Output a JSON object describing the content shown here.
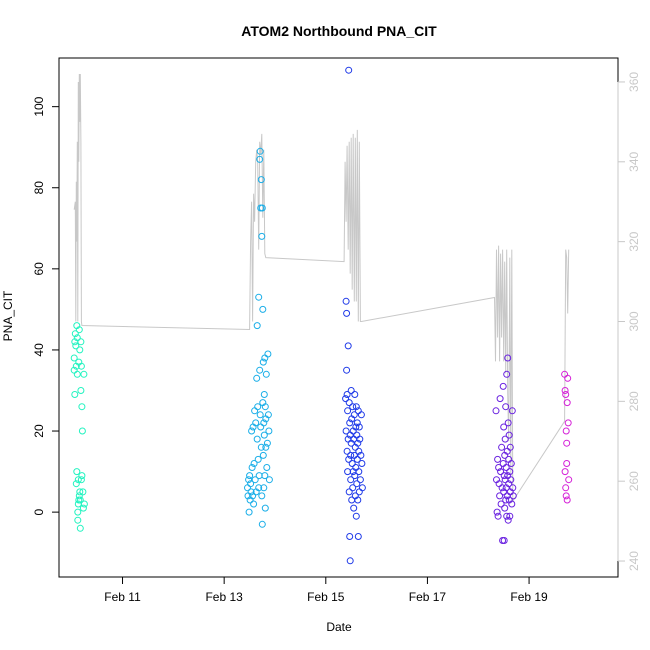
{
  "chart_data": {
    "type": "scatter",
    "title": "ATOM2 Northbound PNA_CIT",
    "xlabel": "Date",
    "ylabel": "PNA_CIT",
    "x_ticks": [
      "Feb 11",
      "Feb 13",
      "Feb 15",
      "Feb 17",
      "Feb 19"
    ],
    "y_ticks": [
      "0",
      "20",
      "40",
      "60",
      "80",
      "100"
    ],
    "y2_ticks": [
      "240",
      "260",
      "280",
      "300",
      "320",
      "340",
      "360"
    ],
    "xlim": [
      "2022-02-09T18:00",
      "2022-02-20T18:00"
    ],
    "ylim": [
      -16,
      112
    ],
    "y2lim": [
      236,
      366
    ],
    "point_series": [
      {
        "color": "#22f3c0",
        "points": [
          [
            10.05,
            35
          ],
          [
            10.05,
            38
          ],
          [
            10.06,
            42
          ],
          [
            10.06,
            29
          ],
          [
            10.07,
            44
          ],
          [
            10.08,
            41
          ],
          [
            10.09,
            36
          ],
          [
            10.09,
            7
          ],
          [
            10.1,
            46
          ],
          [
            10.1,
            10
          ],
          [
            10.11,
            43
          ],
          [
            10.11,
            34
          ],
          [
            10.12,
            0
          ],
          [
            10.12,
            -2
          ],
          [
            10.13,
            8
          ],
          [
            10.13,
            2
          ],
          [
            10.14,
            3
          ],
          [
            10.14,
            37
          ],
          [
            10.15,
            45
          ],
          [
            10.15,
            4
          ],
          [
            10.16,
            5
          ],
          [
            10.16,
            40
          ],
          [
            10.17,
            -4
          ],
          [
            10.17,
            3
          ],
          [
            10.18,
            42
          ],
          [
            10.18,
            30
          ],
          [
            10.19,
            36
          ],
          [
            10.19,
            8
          ],
          [
            10.2,
            26
          ],
          [
            10.2,
            9
          ],
          [
            10.21,
            20
          ],
          [
            10.22,
            5
          ],
          [
            10.23,
            1
          ],
          [
            10.24,
            34
          ],
          [
            10.25,
            2
          ]
        ]
      },
      {
        "color": "#1aaee8",
        "points": [
          [
            13.46,
            6
          ],
          [
            13.47,
            4
          ],
          [
            13.48,
            8
          ],
          [
            13.49,
            0
          ],
          [
            13.5,
            9
          ],
          [
            13.51,
            3
          ],
          [
            13.52,
            7
          ],
          [
            13.53,
            5
          ],
          [
            13.54,
            20
          ],
          [
            13.55,
            11
          ],
          [
            13.56,
            4
          ],
          [
            13.57,
            21
          ],
          [
            13.58,
            2
          ],
          [
            13.59,
            12
          ],
          [
            13.6,
            25
          ],
          [
            13.61,
            8
          ],
          [
            13.62,
            22
          ],
          [
            13.63,
            5
          ],
          [
            13.64,
            33
          ],
          [
            13.65,
            18
          ],
          [
            13.65,
            46
          ],
          [
            13.66,
            26
          ],
          [
            13.67,
            13
          ],
          [
            13.68,
            53
          ],
          [
            13.68,
            6
          ],
          [
            13.69,
            9
          ],
          [
            13.7,
            87
          ],
          [
            13.7,
            35
          ],
          [
            13.71,
            89
          ],
          [
            13.71,
            24
          ],
          [
            13.72,
            75
          ],
          [
            13.72,
            21
          ],
          [
            13.73,
            82
          ],
          [
            13.73,
            16
          ],
          [
            13.74,
            68
          ],
          [
            13.74,
            4
          ],
          [
            13.75,
            75
          ],
          [
            13.75,
            -3
          ],
          [
            13.76,
            50
          ],
          [
            13.76,
            27
          ],
          [
            13.77,
            37
          ],
          [
            13.77,
            14
          ],
          [
            13.78,
            22
          ],
          [
            13.78,
            6
          ],
          [
            13.79,
            29
          ],
          [
            13.79,
            19
          ],
          [
            13.8,
            38
          ],
          [
            13.8,
            9
          ],
          [
            13.81,
            26
          ],
          [
            13.81,
            1
          ],
          [
            13.82,
            16
          ],
          [
            13.82,
            23
          ],
          [
            13.83,
            34
          ],
          [
            13.84,
            11
          ],
          [
            13.85,
            17
          ],
          [
            13.86,
            39
          ],
          [
            13.87,
            24
          ],
          [
            13.88,
            20
          ],
          [
            13.89,
            8
          ]
        ]
      },
      {
        "color": "#1f3ae8",
        "points": [
          [
            15.39,
            28
          ],
          [
            15.4,
            52
          ],
          [
            15.4,
            20
          ],
          [
            15.41,
            49
          ],
          [
            15.41,
            35
          ],
          [
            15.42,
            29
          ],
          [
            15.42,
            15
          ],
          [
            15.43,
            25
          ],
          [
            15.43,
            10
          ],
          [
            15.44,
            41
          ],
          [
            15.44,
            18
          ],
          [
            15.45,
            109
          ],
          [
            15.45,
            13
          ],
          [
            15.46,
            5
          ],
          [
            15.46,
            27
          ],
          [
            15.47,
            -6
          ],
          [
            15.47,
            22
          ],
          [
            15.48,
            -12
          ],
          [
            15.48,
            19
          ],
          [
            15.49,
            14
          ],
          [
            15.49,
            8
          ],
          [
            15.5,
            30
          ],
          [
            15.5,
            17
          ],
          [
            15.51,
            3
          ],
          [
            15.51,
            23
          ],
          [
            15.52,
            12
          ],
          [
            15.53,
            26
          ],
          [
            15.53,
            6
          ],
          [
            15.54,
            20
          ],
          [
            15.54,
            10
          ],
          [
            15.55,
            18
          ],
          [
            15.55,
            1
          ],
          [
            15.56,
            24
          ],
          [
            15.56,
            14
          ],
          [
            15.57,
            9
          ],
          [
            15.57,
            29
          ],
          [
            15.58,
            16
          ],
          [
            15.58,
            4
          ],
          [
            15.59,
            21
          ],
          [
            15.59,
            11
          ],
          [
            15.6,
            26
          ],
          [
            15.6,
            -1
          ],
          [
            15.61,
            19
          ],
          [
            15.61,
            7
          ],
          [
            15.62,
            13
          ],
          [
            15.62,
            22
          ],
          [
            15.63,
            3
          ],
          [
            15.63,
            17
          ],
          [
            15.64,
            25
          ],
          [
            15.64,
            -6
          ],
          [
            15.65,
            10
          ],
          [
            15.65,
            15
          ],
          [
            15.66,
            21
          ],
          [
            15.66,
            5
          ],
          [
            15.67,
            18
          ],
          [
            15.68,
            8
          ],
          [
            15.69,
            14
          ],
          [
            15.7,
            24
          ],
          [
            15.71,
            12
          ],
          [
            15.72,
            6
          ]
        ]
      },
      {
        "color": "#6a22e0",
        "points": [
          [
            18.35,
            25
          ],
          [
            18.36,
            8
          ],
          [
            18.37,
            0
          ],
          [
            18.38,
            13
          ],
          [
            18.39,
            -1
          ],
          [
            18.4,
            11
          ],
          [
            18.41,
            7
          ],
          [
            18.42,
            4
          ],
          [
            18.43,
            28
          ],
          [
            18.44,
            10
          ],
          [
            18.45,
            2
          ],
          [
            18.46,
            16
          ],
          [
            18.47,
            6
          ],
          [
            18.48,
            -7
          ],
          [
            18.49,
            12
          ],
          [
            18.49,
            31
          ],
          [
            18.5,
            5
          ],
          [
            18.5,
            21
          ],
          [
            18.51,
            9
          ],
          [
            18.51,
            -7
          ],
          [
            18.52,
            14
          ],
          [
            18.52,
            1
          ],
          [
            18.53,
            8
          ],
          [
            18.53,
            18
          ],
          [
            18.54,
            3
          ],
          [
            18.54,
            26
          ],
          [
            18.55,
            11
          ],
          [
            18.55,
            6
          ],
          [
            18.56,
            34
          ],
          [
            18.56,
            -1
          ],
          [
            18.57,
            15
          ],
          [
            18.57,
            4
          ],
          [
            18.58,
            9
          ],
          [
            18.58,
            38
          ],
          [
            18.59,
            22
          ],
          [
            18.59,
            -2
          ],
          [
            18.6,
            13
          ],
          [
            18.6,
            7
          ],
          [
            18.61,
            3
          ],
          [
            18.61,
            19
          ],
          [
            18.62,
            10
          ],
          [
            18.62,
            -1
          ],
          [
            18.63,
            16
          ],
          [
            18.63,
            5
          ],
          [
            18.64,
            8
          ],
          [
            18.65,
            12
          ],
          [
            18.66,
            2
          ],
          [
            18.67,
            25
          ],
          [
            18.68,
            6
          ],
          [
            18.69,
            4
          ]
        ]
      },
      {
        "color": "#d522d8",
        "points": [
          [
            19.7,
            34
          ],
          [
            19.71,
            30
          ],
          [
            19.71,
            10
          ],
          [
            19.72,
            29
          ],
          [
            19.72,
            6
          ],
          [
            19.73,
            20
          ],
          [
            19.73,
            4
          ],
          [
            19.74,
            17
          ],
          [
            19.74,
            12
          ],
          [
            19.75,
            27
          ],
          [
            19.75,
            3
          ],
          [
            19.76,
            33
          ],
          [
            19.77,
            22
          ],
          [
            19.78,
            8
          ]
        ]
      }
    ],
    "line_series": {
      "color": "#c8c8c8",
      "axis": "right",
      "points": [
        [
          10.05,
          328
        ],
        [
          10.07,
          330
        ],
        [
          10.08,
          300
        ],
        [
          10.09,
          335
        ],
        [
          10.1,
          320
        ],
        [
          10.11,
          345
        ],
        [
          10.12,
          300
        ],
        [
          10.13,
          360
        ],
        [
          10.14,
          340
        ],
        [
          10.15,
          362
        ],
        [
          10.16,
          350
        ],
        [
          10.17,
          362
        ],
        [
          10.18,
          345
        ],
        [
          10.19,
          300
        ],
        [
          10.2,
          299
        ],
        [
          13.5,
          298
        ],
        [
          13.52,
          320
        ],
        [
          13.54,
          330
        ],
        [
          13.56,
          300
        ],
        [
          13.58,
          332
        ],
        [
          13.6,
          325
        ],
        [
          13.62,
          340
        ],
        [
          13.64,
          343
        ],
        [
          13.66,
          340
        ],
        [
          13.68,
          318
        ],
        [
          13.7,
          345
        ],
        [
          13.72,
          342
        ],
        [
          13.74,
          347
        ],
        [
          13.76,
          326
        ],
        [
          13.78,
          343
        ],
        [
          13.8,
          317
        ],
        [
          13.82,
          316
        ],
        [
          15.36,
          315
        ],
        [
          15.38,
          340
        ],
        [
          15.4,
          325
        ],
        [
          15.42,
          344
        ],
        [
          15.44,
          318
        ],
        [
          15.46,
          345
        ],
        [
          15.48,
          312
        ],
        [
          15.5,
          346
        ],
        [
          15.52,
          308
        ],
        [
          15.54,
          347
        ],
        [
          15.56,
          305
        ],
        [
          15.58,
          346
        ],
        [
          15.6,
          305
        ],
        [
          15.62,
          348
        ],
        [
          15.64,
          300
        ],
        [
          15.66,
          345
        ],
        [
          15.68,
          300
        ],
        [
          15.7,
          300
        ],
        [
          18.32,
          306
        ],
        [
          18.34,
          290
        ],
        [
          18.36,
          318
        ],
        [
          18.38,
          296
        ],
        [
          18.4,
          319
        ],
        [
          18.42,
          290
        ],
        [
          18.44,
          317
        ],
        [
          18.46,
          296
        ],
        [
          18.48,
          318
        ],
        [
          18.5,
          290
        ],
        [
          18.52,
          315
        ],
        [
          18.54,
          287
        ],
        [
          18.56,
          318
        ],
        [
          18.58,
          282
        ],
        [
          18.6,
          270
        ],
        [
          18.62,
          316
        ],
        [
          18.64,
          262
        ],
        [
          18.66,
          318
        ],
        [
          18.68,
          255
        ],
        [
          19.7,
          275
        ],
        [
          19.72,
          318
        ],
        [
          19.74,
          316
        ],
        [
          19.76,
          302
        ],
        [
          19.78,
          318
        ]
      ]
    }
  }
}
